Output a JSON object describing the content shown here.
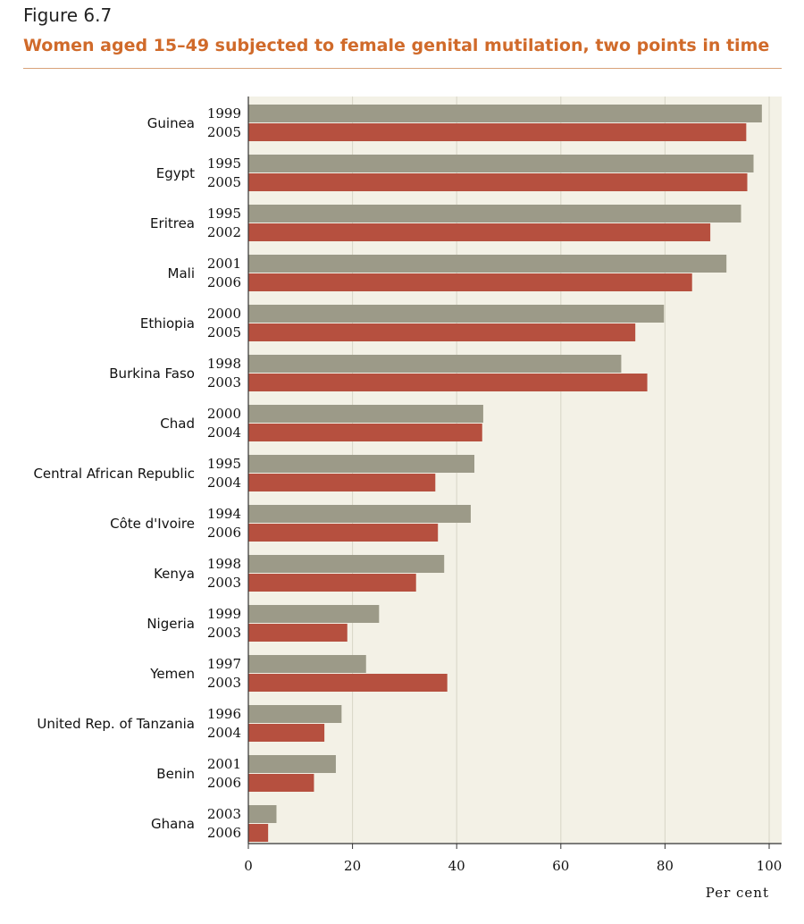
{
  "figure_label": "Figure 6.7",
  "chart_data": {
    "type": "bar",
    "orientation": "horizontal",
    "title": "Women aged 15–49 subjected to female genital mutilation, two points in time",
    "xlabel": "Per cent",
    "ylabel": "",
    "xlim": [
      0,
      100
    ],
    "xticks": [
      "0",
      "20",
      "40",
      "60",
      "80",
      "100"
    ],
    "grid": true,
    "colors": {
      "earlier": "#9c9a88",
      "later": "#b6503f",
      "plot_bg": "#f3f1e6",
      "grid": "#d7d5c6",
      "title": "#d06a2a"
    },
    "categories": [
      "Guinea",
      "Egypt",
      "Eritrea",
      "Mali",
      "Ethiopia",
      "Burkina Faso",
      "Chad",
      "Central African Republic",
      "Côte d'Ivoire",
      "Kenya",
      "Nigeria",
      "Yemen",
      "United Rep. of Tanzania",
      "Benin",
      "Ghana"
    ],
    "series": [
      {
        "years": [
          "1999",
          "1995",
          "1995",
          "2001",
          "2000",
          "1998",
          "2000",
          "1995",
          "1994",
          "1998",
          "1999",
          "1997",
          "1996",
          "2001",
          "2003"
        ],
        "values": [
          98.6,
          97.0,
          94.6,
          91.8,
          79.8,
          71.6,
          45.1,
          43.4,
          42.7,
          37.6,
          25.1,
          22.6,
          17.9,
          16.8,
          5.4
        ]
      },
      {
        "years": [
          "2005",
          "2005",
          "2002",
          "2006",
          "2005",
          "2003",
          "2004",
          "2004",
          "2006",
          "2003",
          "2003",
          "2003",
          "2004",
          "2006",
          "2006"
        ],
        "values": [
          95.6,
          95.8,
          88.7,
          85.2,
          74.3,
          76.6,
          44.9,
          35.9,
          36.4,
          32.2,
          19.0,
          38.2,
          14.6,
          12.6,
          3.8
        ]
      }
    ]
  }
}
